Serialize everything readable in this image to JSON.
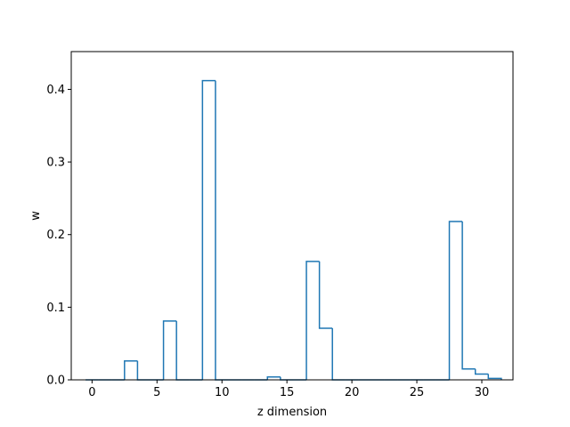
{
  "chart_data": {
    "type": "bar",
    "style": "step-histogram",
    "x_start": -0.5,
    "bin_width": 1,
    "categories": [
      0,
      1,
      2,
      3,
      4,
      5,
      6,
      7,
      8,
      9,
      10,
      11,
      12,
      13,
      14,
      15,
      16,
      17,
      18,
      19,
      20,
      21,
      22,
      23,
      24,
      25,
      26,
      27,
      28,
      29,
      30,
      31
    ],
    "values": [
      0,
      0,
      0,
      0.026,
      0,
      0,
      0.081,
      0,
      0,
      0.412,
      0,
      0,
      0,
      0,
      0.004,
      0,
      0,
      0.163,
      0.071,
      0,
      0,
      0,
      0,
      0,
      0,
      0,
      0,
      0,
      0.218,
      0.015,
      0.008,
      0.002
    ],
    "title": "",
    "xlabel": "z dimension",
    "ylabel": "w",
    "xlim": [
      -1.6,
      32.4
    ],
    "ylim": [
      0,
      0.452
    ],
    "xticks": [
      0,
      5,
      10,
      15,
      20,
      25,
      30
    ],
    "yticks": [
      0.0,
      0.1,
      0.2,
      0.3,
      0.4
    ],
    "xtick_labels": [
      "0",
      "5",
      "10",
      "15",
      "20",
      "25",
      "30"
    ],
    "ytick_labels": [
      "0.0",
      "0.1",
      "0.2",
      "0.3",
      "0.4"
    ],
    "grid": false,
    "colors": {
      "line": "#1f77b4",
      "axes": "#000000",
      "background": "#ffffff"
    }
  }
}
